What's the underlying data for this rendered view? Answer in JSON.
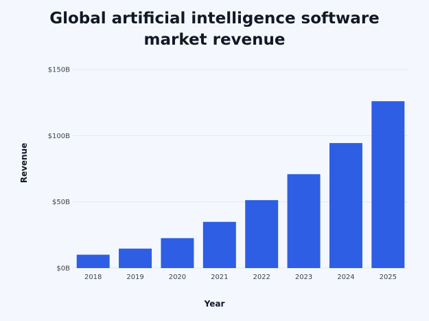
{
  "chart_data": {
    "type": "bar",
    "title": "Global artificial intelligence software market revenue",
    "xlabel": "Year",
    "ylabel": "Revenue",
    "categories": [
      "2018",
      "2019",
      "2020",
      "2021",
      "2022",
      "2023",
      "2024",
      "2025"
    ],
    "series": [
      {
        "values": [
          10.1,
          14.7,
          22.6,
          34.9,
          51.3,
          70.9,
          94.4,
          126.0
        ]
      }
    ],
    "ylim": [
      0,
      150
    ],
    "yticks": [
      0,
      50,
      100,
      150
    ],
    "ytick_labels": [
      "$0B",
      "$50B",
      "$100B",
      "$150B"
    ],
    "grid": true,
    "legend": "none",
    "colors": {
      "bar": "#2d5ee3",
      "grid": "#e2e8f2",
      "background": "#f4f8fe",
      "text": "#121826"
    }
  }
}
